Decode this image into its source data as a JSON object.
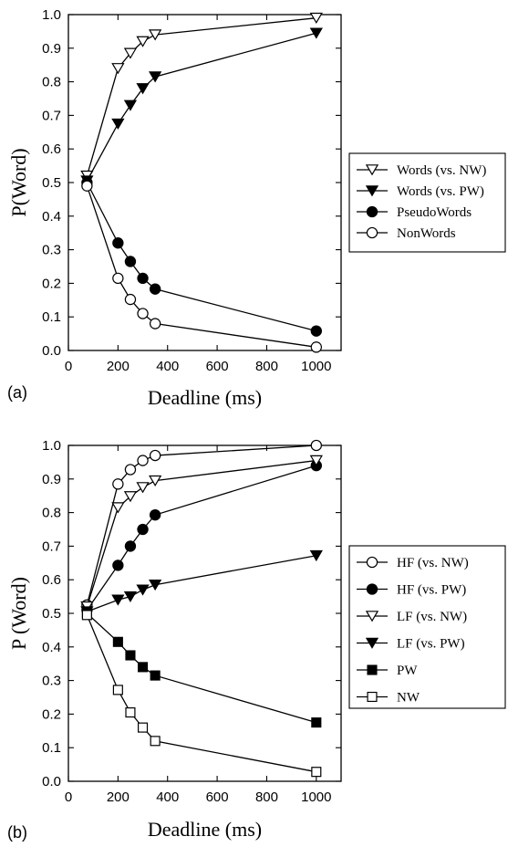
{
  "chart_data": [
    {
      "panel_label": "(a)",
      "type": "line",
      "xlabel": "Deadline (ms)",
      "ylabel": "P(Word)",
      "xlim": [
        0,
        1100
      ],
      "ylim": [
        0,
        1.0
      ],
      "x_ticks": [
        0,
        200,
        400,
        600,
        800,
        1000
      ],
      "y_ticks": [
        0.0,
        0.1,
        0.2,
        0.3,
        0.4,
        0.5,
        0.6,
        0.7,
        0.8,
        0.9,
        1.0
      ],
      "x_tick_labels": [
        "0",
        "200",
        "400",
        "600",
        "800",
        "1000"
      ],
      "y_tick_labels": [
        "0.0",
        "0.1",
        "0.2",
        "0.3",
        "0.4",
        "0.5",
        "0.6",
        "0.7",
        "0.8",
        "0.9",
        "1.0"
      ],
      "legend_position": "right",
      "series": [
        {
          "name": "Words (vs. NW)",
          "marker": "triangle-down-open",
          "x": [
            75,
            200,
            250,
            300,
            350,
            1000
          ],
          "values": [
            0.52,
            0.84,
            0.885,
            0.92,
            0.94,
            0.99
          ]
        },
        {
          "name": "Words (vs. PW)",
          "marker": "triangle-down-filled",
          "x": [
            75,
            200,
            250,
            300,
            350,
            1000
          ],
          "values": [
            0.505,
            0.675,
            0.73,
            0.78,
            0.815,
            0.945
          ]
        },
        {
          "name": "PseudoWords",
          "marker": "circle-filled",
          "x": [
            75,
            200,
            250,
            300,
            350,
            1000
          ],
          "values": [
            0.5,
            0.32,
            0.265,
            0.215,
            0.183,
            0.058
          ]
        },
        {
          "name": "NonWords",
          "marker": "circle-open",
          "x": [
            75,
            200,
            250,
            300,
            350,
            1000
          ],
          "values": [
            0.49,
            0.215,
            0.152,
            0.11,
            0.08,
            0.01
          ]
        }
      ]
    },
    {
      "panel_label": "(b)",
      "type": "line",
      "xlabel": "Deadline (ms)",
      "ylabel": "P (Word)",
      "xlim": [
        0,
        1100
      ],
      "ylim": [
        0,
        1.0
      ],
      "x_ticks": [
        0,
        200,
        400,
        600,
        800,
        1000
      ],
      "y_ticks": [
        0.0,
        0.1,
        0.2,
        0.3,
        0.4,
        0.5,
        0.6,
        0.7,
        0.8,
        0.9,
        1.0
      ],
      "x_tick_labels": [
        "0",
        "200",
        "400",
        "600",
        "800",
        "1000"
      ],
      "y_tick_labels": [
        "0.0",
        "0.1",
        "0.2",
        "0.3",
        "0.4",
        "0.5",
        "0.6",
        "0.7",
        "0.8",
        "0.9",
        "1.0"
      ],
      "legend_position": "right",
      "series": [
        {
          "name": "HF (vs. NW)",
          "marker": "circle-open",
          "x": [
            75,
            200,
            250,
            300,
            350,
            1000
          ],
          "values": [
            0.525,
            0.885,
            0.928,
            0.955,
            0.97,
            1.0
          ]
        },
        {
          "name": "HF (vs. PW)",
          "marker": "circle-filled",
          "x": [
            75,
            200,
            250,
            300,
            350,
            1000
          ],
          "values": [
            0.51,
            0.643,
            0.7,
            0.75,
            0.793,
            0.94
          ]
        },
        {
          "name": "LF (vs. NW)",
          "marker": "triangle-down-open",
          "x": [
            75,
            200,
            250,
            300,
            350,
            1000
          ],
          "values": [
            0.52,
            0.815,
            0.848,
            0.875,
            0.895,
            0.955
          ]
        },
        {
          "name": "LF (vs. PW)",
          "marker": "triangle-down-filled",
          "x": [
            75,
            200,
            250,
            300,
            350,
            1000
          ],
          "values": [
            0.505,
            0.54,
            0.55,
            0.57,
            0.585,
            0.672
          ]
        },
        {
          "name": "PW",
          "marker": "square-filled",
          "x": [
            75,
            200,
            250,
            300,
            350,
            1000
          ],
          "values": [
            0.5,
            0.415,
            0.375,
            0.34,
            0.315,
            0.175
          ]
        },
        {
          "name": "NW",
          "marker": "square-open",
          "x": [
            75,
            200,
            250,
            300,
            350,
            1000
          ],
          "values": [
            0.495,
            0.272,
            0.205,
            0.16,
            0.12,
            0.028
          ]
        }
      ]
    }
  ]
}
